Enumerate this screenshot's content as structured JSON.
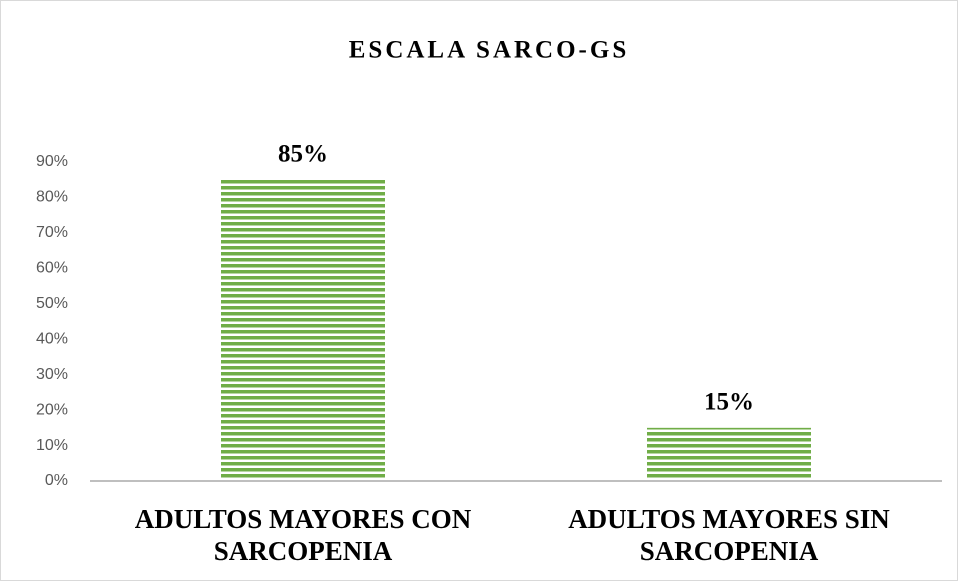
{
  "chart_data": {
    "type": "bar",
    "title": "ESCALA SARCO-GS",
    "categories": [
      "ADULTOS MAYORES CON SARCOPENIA",
      "ADULTOS MAYORES SIN SARCOPENIA"
    ],
    "values": [
      85,
      15
    ],
    "value_labels": [
      "85%",
      "15%"
    ],
    "color": "#70ad47",
    "ylim": [
      0,
      90
    ],
    "yticks": [
      {
        "value": 0,
        "label": "0%"
      },
      {
        "value": 10,
        "label": "10%"
      },
      {
        "value": 20,
        "label": "20%"
      },
      {
        "value": 30,
        "label": "30%"
      },
      {
        "value": 40,
        "label": "40%"
      },
      {
        "value": 50,
        "label": "50%"
      },
      {
        "value": 60,
        "label": "60%"
      },
      {
        "value": 70,
        "label": "70%"
      },
      {
        "value": 80,
        "label": "80%"
      },
      {
        "value": 90,
        "label": "90%"
      }
    ],
    "grid": false
  }
}
